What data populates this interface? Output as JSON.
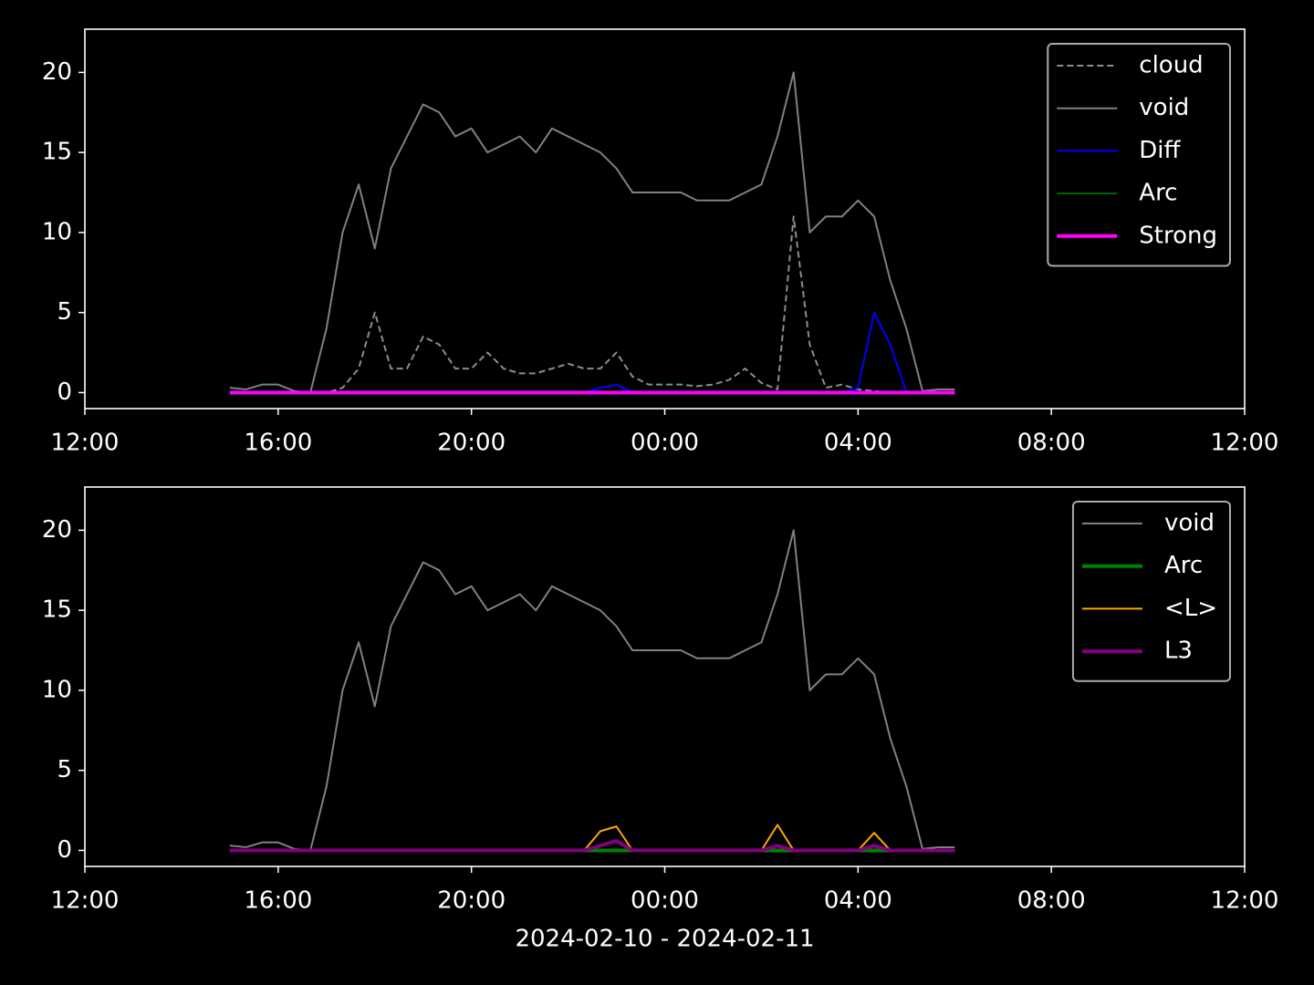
{
  "chart_data": [
    {
      "type": "line",
      "x": [
        "2024-02-10T15:00",
        "2024-02-10T15:20",
        "2024-02-10T15:40",
        "2024-02-10T16:00",
        "2024-02-10T16:20",
        "2024-02-10T16:40",
        "2024-02-10T17:00",
        "2024-02-10T17:20",
        "2024-02-10T17:40",
        "2024-02-10T18:00",
        "2024-02-10T18:20",
        "2024-02-10T18:40",
        "2024-02-10T19:00",
        "2024-02-10T19:20",
        "2024-02-10T19:40",
        "2024-02-10T20:00",
        "2024-02-10T20:20",
        "2024-02-10T20:40",
        "2024-02-10T21:00",
        "2024-02-10T21:20",
        "2024-02-10T21:40",
        "2024-02-10T22:00",
        "2024-02-10T22:20",
        "2024-02-10T22:40",
        "2024-02-10T23:00",
        "2024-02-10T23:20",
        "2024-02-10T23:40",
        "2024-02-11T00:00",
        "2024-02-11T00:20",
        "2024-02-11T00:40",
        "2024-02-11T01:00",
        "2024-02-11T01:20",
        "2024-02-11T01:40",
        "2024-02-11T02:00",
        "2024-02-11T02:20",
        "2024-02-11T02:40",
        "2024-02-11T03:00",
        "2024-02-11T03:20",
        "2024-02-11T03:40",
        "2024-02-11T04:00",
        "2024-02-11T04:20",
        "2024-02-11T04:40",
        "2024-02-11T05:00",
        "2024-02-11T05:20",
        "2024-02-11T05:40",
        "2024-02-11T06:00"
      ],
      "series": [
        {
          "name": "cloud",
          "color": "#8c8c8c",
          "dashed": true,
          "width": 2,
          "values": [
            0,
            0,
            0,
            0,
            0,
            0,
            0,
            0.3,
            1.5,
            5,
            1.5,
            1.5,
            3.5,
            3,
            1.5,
            1.5,
            2.5,
            1.5,
            1.2,
            1.2,
            1.5,
            1.8,
            1.5,
            1.5,
            2.5,
            1,
            0.5,
            0.5,
            0.5,
            0.4,
            0.5,
            0.8,
            1.5,
            0.6,
            0.2,
            11,
            3,
            0.3,
            0.5,
            0.2,
            0.1,
            0,
            0,
            0,
            0,
            0
          ]
        },
        {
          "name": "void",
          "color": "#808080",
          "width": 2,
          "values": [
            0.3,
            0.2,
            0.5,
            0.5,
            0.1,
            0,
            4,
            10,
            13,
            9,
            14,
            16,
            18,
            17.5,
            16,
            16.5,
            15,
            15.5,
            16,
            15,
            16.5,
            16,
            15.5,
            15,
            14,
            12.5,
            12.5,
            12.5,
            12.5,
            12,
            12,
            12,
            12.5,
            13,
            16,
            20,
            10,
            11,
            11,
            12,
            11,
            7,
            4,
            0.1,
            0.2,
            0.2
          ]
        },
        {
          "name": "Diff",
          "color": "#0000ff",
          "width": 2,
          "values": [
            0,
            0,
            0,
            0,
            0,
            0,
            0,
            0,
            0,
            0,
            0,
            0,
            0,
            0,
            0,
            0,
            0,
            0,
            0,
            0,
            0,
            0,
            0,
            0.3,
            0.5,
            0,
            0,
            0,
            0,
            0,
            0,
            0,
            0,
            0,
            0,
            0,
            0,
            0,
            0,
            0.3,
            5,
            3,
            0,
            0,
            0,
            0
          ]
        },
        {
          "name": "Arc",
          "color": "#006400",
          "width": 2,
          "values": [
            0,
            0,
            0,
            0,
            0,
            0,
            0,
            0,
            0,
            0,
            0,
            0,
            0,
            0,
            0,
            0,
            0,
            0,
            0,
            0,
            0,
            0,
            0,
            0,
            0,
            0,
            0,
            0,
            0,
            0,
            0,
            0,
            0,
            0,
            0,
            0,
            0,
            0,
            0,
            0,
            0,
            0,
            0,
            0,
            0,
            0
          ]
        },
        {
          "name": "Strong",
          "color": "#ff00ff",
          "width": 4,
          "values": [
            0,
            0,
            0,
            0,
            0,
            0,
            0,
            0,
            0,
            0,
            0,
            0,
            0,
            0,
            0,
            0,
            0,
            0,
            0,
            0,
            0,
            0,
            0,
            0,
            0,
            0,
            0,
            0,
            0,
            0,
            0,
            0,
            0,
            0,
            0,
            0,
            0,
            0,
            0,
            0,
            0,
            0,
            0,
            0,
            0,
            0
          ]
        }
      ],
      "xlim": [
        "2024-02-10T12:00",
        "2024-02-11T12:00"
      ],
      "xticks": [
        {
          "value": "2024-02-10T12:00",
          "label": "12:00"
        },
        {
          "value": "2024-02-10T16:00",
          "label": "16:00"
        },
        {
          "value": "2024-02-10T20:00",
          "label": "20:00"
        },
        {
          "value": "2024-02-11T00:00",
          "label": "00:00"
        },
        {
          "value": "2024-02-11T04:00",
          "label": "04:00"
        },
        {
          "value": "2024-02-11T08:00",
          "label": "08:00"
        },
        {
          "value": "2024-02-11T12:00",
          "label": "12:00"
        }
      ],
      "ylim": [
        -1,
        22.7
      ],
      "yticks": [
        0,
        5,
        10,
        15,
        20
      ],
      "legend": "upper right"
    },
    {
      "type": "line",
      "x": [
        "2024-02-10T15:00",
        "2024-02-10T15:20",
        "2024-02-10T15:40",
        "2024-02-10T16:00",
        "2024-02-10T16:20",
        "2024-02-10T16:40",
        "2024-02-10T17:00",
        "2024-02-10T17:20",
        "2024-02-10T17:40",
        "2024-02-10T18:00",
        "2024-02-10T18:20",
        "2024-02-10T18:40",
        "2024-02-10T19:00",
        "2024-02-10T19:20",
        "2024-02-10T19:40",
        "2024-02-10T20:00",
        "2024-02-10T20:20",
        "2024-02-10T20:40",
        "2024-02-10T21:00",
        "2024-02-10T21:20",
        "2024-02-10T21:40",
        "2024-02-10T22:00",
        "2024-02-10T22:20",
        "2024-02-10T22:40",
        "2024-02-10T23:00",
        "2024-02-10T23:20",
        "2024-02-10T23:40",
        "2024-02-11T00:00",
        "2024-02-11T00:20",
        "2024-02-11T00:40",
        "2024-02-11T01:00",
        "2024-02-11T01:20",
        "2024-02-11T01:40",
        "2024-02-11T02:00",
        "2024-02-11T02:20",
        "2024-02-11T02:40",
        "2024-02-11T03:00",
        "2024-02-11T03:20",
        "2024-02-11T03:40",
        "2024-02-11T04:00",
        "2024-02-11T04:20",
        "2024-02-11T04:40",
        "2024-02-11T05:00",
        "2024-02-11T05:20",
        "2024-02-11T05:40",
        "2024-02-11T06:00"
      ],
      "series": [
        {
          "name": "void",
          "color": "#808080",
          "width": 2,
          "values": [
            0.3,
            0.2,
            0.5,
            0.5,
            0.1,
            0,
            4,
            10,
            13,
            9,
            14,
            16,
            18,
            17.5,
            16,
            16.5,
            15,
            15.5,
            16,
            15,
            16.5,
            16,
            15.5,
            15,
            14,
            12.5,
            12.5,
            12.5,
            12.5,
            12,
            12,
            12,
            12.5,
            13,
            16,
            20,
            10,
            11,
            11,
            12,
            11,
            7,
            4,
            0.1,
            0.2,
            0.2
          ]
        },
        {
          "name": "Arc",
          "color": "#008000",
          "width": 4,
          "values": [
            0,
            0,
            0,
            0,
            0,
            0,
            0,
            0,
            0,
            0,
            0,
            0,
            0,
            0,
            0,
            0,
            0,
            0,
            0,
            0,
            0,
            0,
            0,
            0,
            0,
            0,
            0,
            0,
            0,
            0,
            0,
            0,
            0,
            0,
            0,
            0,
            0,
            0,
            0,
            0,
            0,
            0,
            0,
            0,
            0,
            0
          ]
        },
        {
          "name": "<L>",
          "color": "#ffa500",
          "width": 2,
          "values": [
            0,
            0,
            0,
            0,
            0,
            0,
            0,
            0,
            0,
            0,
            0,
            0,
            0,
            0,
            0,
            0,
            0,
            0,
            0,
            0,
            0,
            0,
            0,
            1.2,
            1.5,
            0,
            0,
            0,
            0,
            0,
            0,
            0,
            0,
            0,
            1.6,
            0,
            0,
            0,
            0,
            0,
            1.1,
            0,
            0,
            0,
            0,
            0
          ]
        },
        {
          "name": "L3",
          "color": "#800080",
          "width": 4,
          "values": [
            0,
            0,
            0,
            0,
            0,
            0,
            0,
            0,
            0,
            0,
            0,
            0,
            0,
            0,
            0,
            0,
            0,
            0,
            0,
            0,
            0,
            0,
            0,
            0.3,
            0.6,
            0,
            0,
            0,
            0,
            0,
            0,
            0,
            0,
            0,
            0.3,
            0,
            0,
            0,
            0,
            0,
            0.3,
            0,
            0,
            0,
            0,
            0
          ]
        }
      ],
      "xlim": [
        "2024-02-10T12:00",
        "2024-02-11T12:00"
      ],
      "xticks": [
        {
          "value": "2024-02-10T12:00",
          "label": "12:00"
        },
        {
          "value": "2024-02-10T16:00",
          "label": "16:00"
        },
        {
          "value": "2024-02-10T20:00",
          "label": "20:00"
        },
        {
          "value": "2024-02-11T00:00",
          "label": "00:00"
        },
        {
          "value": "2024-02-11T04:00",
          "label": "04:00"
        },
        {
          "value": "2024-02-11T08:00",
          "label": "08:00"
        },
        {
          "value": "2024-02-11T12:00",
          "label": "12:00"
        }
      ],
      "ylim": [
        -1,
        22.7
      ],
      "yticks": [
        0,
        5,
        10,
        15,
        20
      ],
      "legend": "upper right",
      "xlabel": "2024-02-10 - 2024-02-11"
    }
  ]
}
